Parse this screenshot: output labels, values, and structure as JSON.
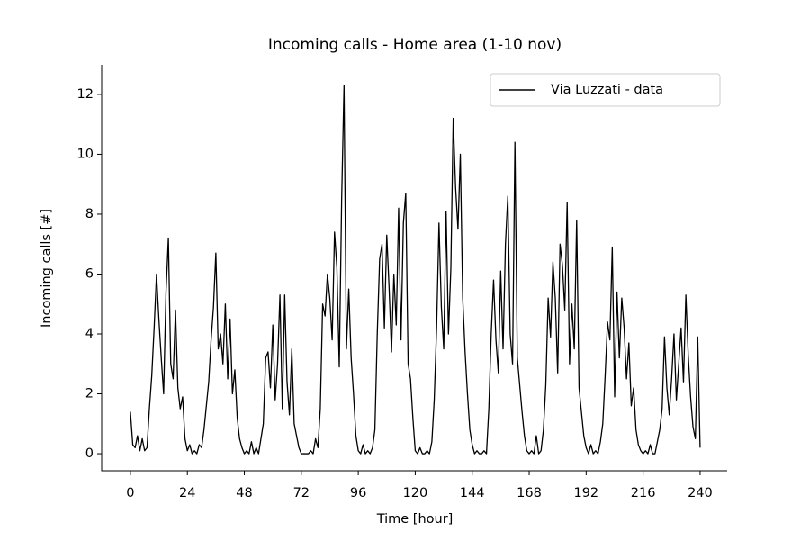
{
  "chart_data": {
    "type": "line",
    "title": "Incoming calls - Home area (1-10 nov)",
    "x_label": "Time [hour]",
    "y_label": "Incoming calls [#]",
    "legend": "upper right",
    "xlim": [
      -12.1,
      251.4
    ],
    "ylim": [
      -0.57,
      12.99
    ],
    "xticks": [
      0,
      24,
      48,
      72,
      96,
      120,
      144,
      168,
      192,
      216,
      240
    ],
    "yticks": [
      0,
      2,
      4,
      6,
      8,
      10,
      12
    ],
    "x": [
      0,
      1,
      2,
      3,
      4,
      5,
      6,
      7,
      8,
      9,
      10,
      11,
      12,
      13,
      14,
      15,
      16,
      17,
      18,
      19,
      20,
      21,
      22,
      23,
      24,
      25,
      26,
      27,
      28,
      29,
      30,
      31,
      32,
      33,
      34,
      35,
      36,
      37,
      38,
      39,
      40,
      41,
      42,
      43,
      44,
      45,
      46,
      47,
      48,
      49,
      50,
      51,
      52,
      53,
      54,
      55,
      56,
      57,
      58,
      59,
      60,
      61,
      62,
      63,
      64,
      65,
      66,
      67,
      68,
      69,
      70,
      71,
      72,
      73,
      74,
      75,
      76,
      77,
      78,
      79,
      80,
      81,
      82,
      83,
      84,
      85,
      86,
      87,
      88,
      89,
      90,
      91,
      92,
      93,
      94,
      95,
      96,
      97,
      98,
      99,
      100,
      101,
      102,
      103,
      104,
      105,
      106,
      107,
      108,
      109,
      110,
      111,
      112,
      113,
      114,
      115,
      116,
      117,
      118,
      119,
      120,
      121,
      122,
      123,
      124,
      125,
      126,
      127,
      128,
      129,
      130,
      131,
      132,
      133,
      134,
      135,
      136,
      137,
      138,
      139,
      140,
      141,
      142,
      143,
      144,
      145,
      146,
      147,
      148,
      149,
      150,
      151,
      152,
      153,
      154,
      155,
      156,
      157,
      158,
      159,
      160,
      161,
      162,
      163,
      164,
      165,
      166,
      167,
      168,
      169,
      170,
      171,
      172,
      173,
      174,
      175,
      176,
      177,
      178,
      179,
      180,
      181,
      182,
      183,
      184,
      185,
      186,
      187,
      188,
      189,
      190,
      191,
      192,
      193,
      194,
      195,
      196,
      197,
      198,
      199,
      200,
      201,
      202,
      203,
      204,
      205,
      206,
      207,
      208,
      209,
      210,
      211,
      212,
      213,
      214,
      215,
      216,
      217,
      218,
      219,
      220,
      221,
      222,
      223,
      224,
      225,
      226,
      227,
      228,
      229,
      230,
      231,
      232,
      233,
      234,
      235,
      236,
      237,
      238,
      239,
      240
    ],
    "series": [
      {
        "name": "Via Luzzati - data",
        "color": "#000000",
        "values": [
          1.4,
          0.3,
          0.2,
          0.6,
          0.1,
          0.5,
          0.1,
          0.2,
          1.5,
          2.6,
          4.2,
          6.0,
          4.5,
          3.2,
          2.0,
          5.4,
          7.2,
          3.0,
          2.5,
          4.8,
          2.2,
          1.5,
          1.9,
          0.5,
          0.1,
          0.3,
          0.0,
          0.1,
          0.0,
          0.3,
          0.2,
          0.8,
          1.6,
          2.4,
          3.8,
          4.9,
          6.7,
          3.5,
          4.0,
          3.0,
          5.0,
          2.5,
          4.5,
          2.0,
          2.8,
          1.2,
          0.5,
          0.2,
          0.0,
          0.1,
          0.0,
          0.4,
          0.0,
          0.2,
          0.0,
          0.5,
          1.0,
          3.2,
          3.4,
          2.2,
          4.3,
          1.8,
          3.0,
          5.3,
          1.5,
          5.3,
          2.4,
          1.3,
          3.5,
          1.0,
          0.6,
          0.2,
          0.0,
          0.0,
          0.0,
          0.0,
          0.1,
          0.0,
          0.5,
          0.2,
          1.5,
          5.0,
          4.6,
          6.0,
          5.2,
          3.8,
          7.4,
          6.2,
          2.9,
          8.5,
          12.3,
          3.5,
          5.5,
          3.2,
          2.0,
          0.6,
          0.1,
          0.0,
          0.3,
          0.0,
          0.1,
          0.0,
          0.2,
          0.8,
          4.0,
          6.5,
          7.0,
          4.2,
          7.3,
          5.5,
          3.4,
          6.0,
          4.3,
          8.2,
          3.8,
          7.7,
          8.7,
          3.0,
          2.5,
          1.2,
          0.1,
          0.0,
          0.2,
          0.0,
          0.0,
          0.1,
          0.0,
          0.4,
          1.8,
          4.2,
          7.7,
          4.9,
          3.5,
          8.1,
          4.0,
          6.2,
          11.2,
          8.9,
          7.5,
          10.0,
          5.2,
          3.4,
          2.0,
          0.8,
          0.3,
          0.0,
          0.1,
          0.0,
          0.0,
          0.1,
          0.0,
          1.5,
          4.0,
          5.8,
          3.8,
          2.7,
          6.1,
          3.5,
          7.0,
          8.6,
          4.0,
          3.0,
          10.4,
          3.2,
          2.3,
          1.4,
          0.6,
          0.1,
          0.0,
          0.1,
          0.0,
          0.6,
          0.0,
          0.1,
          0.8,
          2.3,
          5.2,
          3.9,
          6.4,
          5.2,
          2.7,
          7.0,
          6.3,
          4.8,
          8.4,
          3.0,
          5.0,
          3.5,
          7.8,
          2.2,
          1.4,
          0.6,
          0.2,
          0.0,
          0.3,
          0.0,
          0.1,
          0.0,
          0.4,
          1.0,
          2.6,
          4.4,
          3.8,
          6.9,
          1.9,
          5.4,
          3.2,
          5.2,
          4.2,
          2.5,
          3.7,
          1.6,
          2.2,
          0.8,
          0.3,
          0.1,
          0.0,
          0.1,
          0.0,
          0.3,
          0.0,
          0.0,
          0.4,
          0.8,
          1.5,
          3.9,
          2.2,
          1.3,
          2.5,
          4.0,
          1.8,
          3.0,
          4.2,
          2.4,
          5.3,
          3.3,
          1.9,
          0.9,
          0.5,
          3.9,
          0.2
        ]
      }
    ]
  }
}
